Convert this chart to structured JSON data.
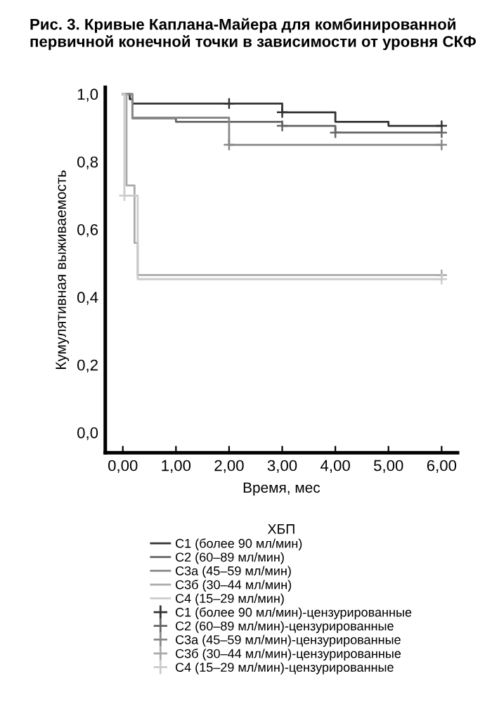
{
  "chart_data": {
    "type": "step",
    "title": "Рис. 3. Кривые Каплана-Майера для комбинированной первичной конечной точки в зависимости от уровня СКФ",
    "xlabel": "Время, мес",
    "ylabel": "Кумулятивная выживаемость",
    "legend_title": "ХБП",
    "xlim": [
      -0.33,
      6.3
    ],
    "ylim": [
      -0.06,
      1.02
    ],
    "xticks": [
      {
        "value": 0,
        "label": "0,00"
      },
      {
        "value": 1,
        "label": "1,00"
      },
      {
        "value": 2,
        "label": "2,00"
      },
      {
        "value": 3,
        "label": "3,00"
      },
      {
        "value": 4,
        "label": "4,00"
      },
      {
        "value": 5,
        "label": "5,00"
      },
      {
        "value": 6,
        "label": "6,00"
      }
    ],
    "yticks": [
      {
        "value": 0,
        "label": "0,0"
      },
      {
        "value": 0.2,
        "label": "0,2"
      },
      {
        "value": 0.4,
        "label": "0,4"
      },
      {
        "value": 0.6,
        "label": "0,6"
      },
      {
        "value": 0.8,
        "label": "0,8"
      },
      {
        "value": 1.0,
        "label": "1,0"
      }
    ],
    "legend": "bottom",
    "grid": false,
    "series": [
      {
        "name": "C1 (более 90 мл/мин)",
        "color": "#333333",
        "x": [
          0,
          0.13,
          0.18,
          3,
          4,
          5,
          6
        ],
        "values": [
          1.0,
          0.985,
          0.972,
          0.946,
          0.918,
          0.906,
          0.906
        ]
      },
      {
        "name": "C2 (60–89 мл/мин)",
        "color": "#666666",
        "x": [
          0,
          0.18,
          1,
          3,
          4,
          6
        ],
        "values": [
          1.0,
          0.928,
          0.918,
          0.906,
          0.886,
          0.886
        ]
      },
      {
        "name": "C3a (45–59 мл/мин)",
        "color": "#888888",
        "x": [
          0,
          0.18,
          2,
          6
        ],
        "values": [
          1.0,
          0.93,
          0.85,
          0.85
        ]
      },
      {
        "name": "C3б (30–44 мл/мин)",
        "color": "#aaaaaa",
        "x": [
          0,
          0.07,
          0.22,
          0.28,
          6
        ],
        "values": [
          1.0,
          0.73,
          0.56,
          0.465,
          0.465
        ]
      },
      {
        "name": "C4 (15–29 мл/мин)",
        "color": "#cccccc",
        "x": [
          0,
          0.03,
          0.28,
          6
        ],
        "values": [
          1.0,
          0.7,
          0.453,
          0.453
        ]
      },
      {
        "name": "C1 (более 90 мл/мин)-цензурированные",
        "type": "scatter",
        "marker": "cross",
        "color": "#333333",
        "x": [
          2,
          3,
          6
        ],
        "values": [
          0.972,
          0.946,
          0.906
        ]
      },
      {
        "name": "C2 (60–89 мл/мин)-цензурированные",
        "type": "scatter",
        "marker": "cross",
        "color": "#666666",
        "x": [
          3,
          4,
          6
        ],
        "values": [
          0.906,
          0.886,
          0.886
        ]
      },
      {
        "name": "C3a (45–59 мл/мин)-цензурированные",
        "type": "scatter",
        "marker": "cross",
        "color": "#888888",
        "x": [
          2,
          6
        ],
        "values": [
          0.85,
          0.85
        ]
      },
      {
        "name": "C3б (30–44 мл/мин)-цензурированные",
        "type": "scatter",
        "marker": "cross",
        "color": "#aaaaaa",
        "x": [
          6
        ],
        "values": [
          0.465
        ]
      },
      {
        "name": "C4 (15–29 мл/мин)-цензурированные",
        "type": "scatter",
        "marker": "cross",
        "color": "#cccccc",
        "x": [
          0.03,
          6
        ],
        "values": [
          0.7,
          0.453
        ]
      }
    ]
  }
}
